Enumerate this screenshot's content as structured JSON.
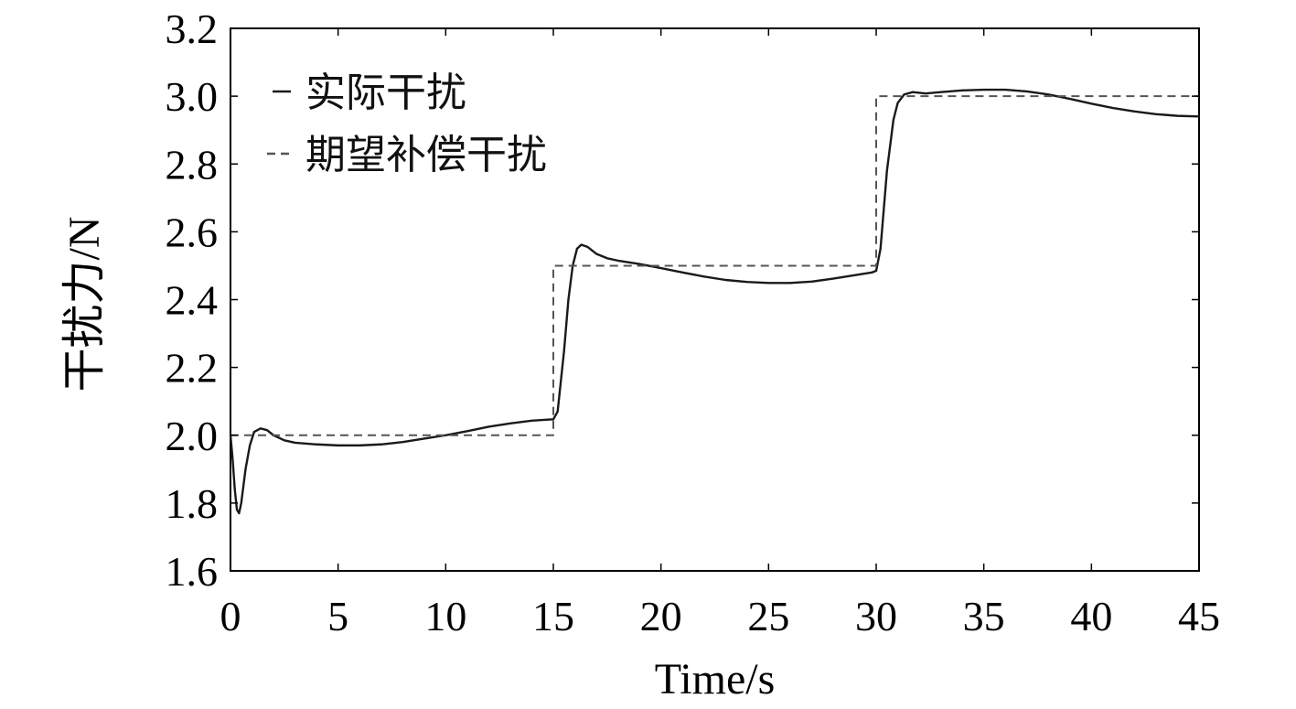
{
  "chart_data": {
    "type": "line",
    "xlabel": "Time/s",
    "ylabel": "干扰力/N",
    "xlim": [
      0,
      45
    ],
    "ylim": [
      1.6,
      3.2
    ],
    "xticks": [
      "0",
      "5",
      "10",
      "15",
      "20",
      "25",
      "30",
      "35",
      "40",
      "45"
    ],
    "yticks": [
      "1.6",
      "1.8",
      "2.0",
      "2.2",
      "2.4",
      "2.6",
      "2.8",
      "3.0",
      "3.2"
    ],
    "legend_position": "top-left",
    "grid": false,
    "series": [
      {
        "name": "实际干扰",
        "style": "solid",
        "color": "#1a1a1a",
        "points": [
          [
            0,
            2.0
          ],
          [
            0.1,
            1.93
          ],
          [
            0.2,
            1.84
          ],
          [
            0.3,
            1.78
          ],
          [
            0.4,
            1.77
          ],
          [
            0.5,
            1.8
          ],
          [
            0.7,
            1.9
          ],
          [
            0.9,
            1.97
          ],
          [
            1.1,
            2.01
          ],
          [
            1.4,
            2.02
          ],
          [
            1.7,
            2.015
          ],
          [
            2.0,
            2.0
          ],
          [
            2.5,
            1.985
          ],
          [
            3.0,
            1.978
          ],
          [
            4.0,
            1.973
          ],
          [
            5.0,
            1.97
          ],
          [
            6.0,
            1.97
          ],
          [
            7.0,
            1.973
          ],
          [
            8.0,
            1.98
          ],
          [
            9.0,
            1.99
          ],
          [
            10.0,
            2.0
          ],
          [
            11.0,
            2.012
          ],
          [
            12.0,
            2.025
          ],
          [
            13.0,
            2.035
          ],
          [
            14.0,
            2.043
          ],
          [
            15.0,
            2.047
          ],
          [
            15.2,
            2.07
          ],
          [
            15.5,
            2.25
          ],
          [
            15.7,
            2.4
          ],
          [
            15.9,
            2.5
          ],
          [
            16.1,
            2.55
          ],
          [
            16.3,
            2.562
          ],
          [
            16.6,
            2.555
          ],
          [
            17.0,
            2.535
          ],
          [
            17.5,
            2.522
          ],
          [
            18.0,
            2.515
          ],
          [
            19.0,
            2.505
          ],
          [
            20.0,
            2.493
          ],
          [
            21.0,
            2.48
          ],
          [
            22.0,
            2.468
          ],
          [
            23.0,
            2.458
          ],
          [
            24.0,
            2.452
          ],
          [
            25.0,
            2.449
          ],
          [
            26.0,
            2.449
          ],
          [
            27.0,
            2.453
          ],
          [
            28.0,
            2.462
          ],
          [
            29.0,
            2.472
          ],
          [
            29.8,
            2.48
          ],
          [
            30.0,
            2.485
          ],
          [
            30.2,
            2.55
          ],
          [
            30.5,
            2.78
          ],
          [
            30.8,
            2.93
          ],
          [
            31.0,
            2.98
          ],
          [
            31.3,
            3.005
          ],
          [
            31.7,
            3.012
          ],
          [
            32.3,
            3.008
          ],
          [
            33.0,
            3.012
          ],
          [
            34.0,
            3.017
          ],
          [
            35.0,
            3.019
          ],
          [
            36.0,
            3.019
          ],
          [
            37.0,
            3.014
          ],
          [
            38.0,
            3.005
          ],
          [
            39.0,
            2.992
          ],
          [
            40.0,
            2.978
          ],
          [
            41.0,
            2.965
          ],
          [
            42.0,
            2.955
          ],
          [
            43.0,
            2.947
          ],
          [
            44.0,
            2.942
          ],
          [
            45.0,
            2.94
          ]
        ]
      },
      {
        "name": "期望补偿干扰",
        "style": "dashed",
        "color": "#555555",
        "points": [
          [
            0,
            2.0
          ],
          [
            15,
            2.0
          ],
          [
            15,
            2.5
          ],
          [
            30,
            2.5
          ],
          [
            30,
            3.0
          ],
          [
            45,
            3.0
          ]
        ]
      }
    ]
  }
}
